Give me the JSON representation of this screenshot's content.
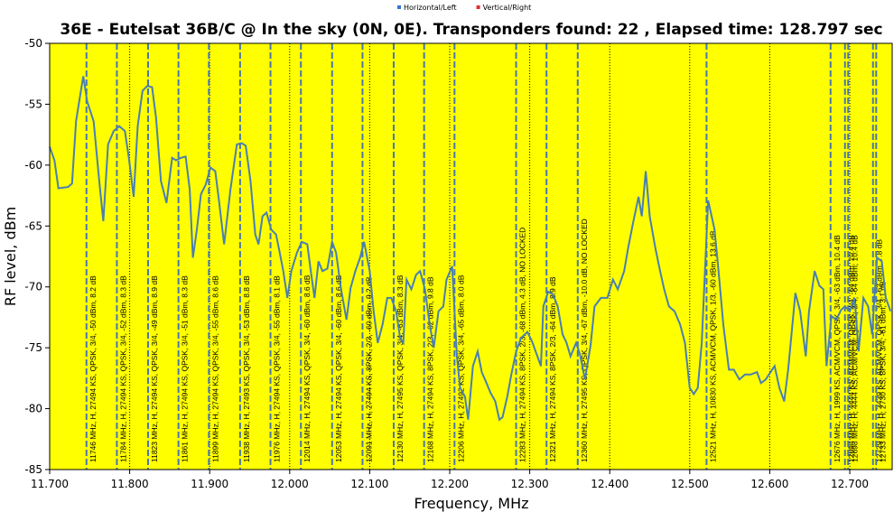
{
  "chart_data": {
    "type": "line",
    "title": "36E - Eutelsat 36B/C @ In the sky (0N, 0E). Transponders found: 22 , Elapsed time: 128.797 sec",
    "x_label": "Frequency, MHz",
    "y_label": "RF level, dBm",
    "xlim": [
      11.7,
      12.753
    ],
    "ylim": [
      -85,
      -50
    ],
    "xticks": [
      {
        "value": 11.7,
        "label": "11.700"
      },
      {
        "value": 11.8,
        "label": "11.800"
      },
      {
        "value": 11.9,
        "label": "11.900"
      },
      {
        "value": 12.0,
        "label": "12.000"
      },
      {
        "value": 12.1,
        "label": "12.100"
      },
      {
        "value": 12.2,
        "label": "12.200"
      },
      {
        "value": 12.3,
        "label": "12.300"
      },
      {
        "value": 12.4,
        "label": "12.400"
      },
      {
        "value": 12.5,
        "label": "12.500"
      },
      {
        "value": 12.6,
        "label": "12.600"
      },
      {
        "value": 12.7,
        "label": "12.700"
      }
    ],
    "yticks": [
      -85,
      -80,
      -75,
      -70,
      -65,
      -60,
      -55,
      -50
    ],
    "grid": "x",
    "background": "#ffff00",
    "series": [
      {
        "name": "Horizontal/Left",
        "color": "#4a7fb0",
        "legend_color": "#3a6fd8",
        "x": [
          11.7,
          11.706,
          11.711,
          11.723,
          11.728,
          11.733,
          11.742,
          11.747,
          11.755,
          11.762,
          11.767,
          11.773,
          11.78,
          11.787,
          11.794,
          11.799,
          11.805,
          11.81,
          11.816,
          11.822,
          11.828,
          11.833,
          11.839,
          11.846,
          11.853,
          11.858,
          11.864,
          11.87,
          11.875,
          11.879,
          11.884,
          11.889,
          11.895,
          11.901,
          11.907,
          11.912,
          11.918,
          11.926,
          11.934,
          11.94,
          11.945,
          11.951,
          11.957,
          11.961,
          11.966,
          11.971,
          11.977,
          11.983,
          11.987,
          11.992,
          11.997,
          12.002,
          12.009,
          12.015,
          12.022,
          12.027,
          12.031,
          12.036,
          12.041,
          12.047,
          12.053,
          12.058,
          12.064,
          12.071,
          12.076,
          12.082,
          12.088,
          12.093,
          12.1,
          12.105,
          12.11,
          12.116,
          12.122,
          12.127,
          12.133,
          12.138,
          12.142,
          12.146,
          12.152,
          12.158,
          12.163,
          12.169,
          12.175,
          12.18,
          12.186,
          12.192,
          12.196,
          12.203,
          12.209,
          12.213,
          12.219,
          12.223,
          12.229,
          12.235,
          12.24,
          12.246,
          12.251,
          12.257,
          12.262,
          12.266,
          12.272,
          12.277,
          12.283,
          12.289,
          12.297,
          12.303,
          12.309,
          12.314,
          12.317,
          12.323,
          12.329,
          12.335,
          12.341,
          12.346,
          12.351,
          12.358,
          12.363,
          12.369,
          12.376,
          12.381,
          12.389,
          12.397,
          12.404,
          12.41,
          12.418,
          12.423,
          12.429,
          12.436,
          12.44,
          12.445,
          12.45,
          12.457,
          12.463,
          12.468,
          12.474,
          12.481,
          12.488,
          12.494,
          12.5,
          12.505,
          12.51,
          12.515,
          12.523,
          12.531,
          12.536,
          12.542,
          12.549,
          12.555,
          12.562,
          12.569,
          12.576,
          12.584,
          12.589,
          12.595,
          12.601,
          12.606,
          12.612,
          12.618,
          12.623,
          12.632,
          12.638,
          12.645,
          12.649,
          12.656,
          12.662,
          12.667,
          12.671,
          12.677,
          12.683,
          12.689,
          12.694,
          12.7,
          12.706,
          12.711,
          12.717,
          12.723,
          12.728,
          12.734,
          12.74,
          12.745,
          12.751
        ],
        "values": [
          -58.5,
          -59.6,
          -61.9,
          -61.8,
          -61.5,
          -56.4,
          -52.7,
          -54.8,
          -56.4,
          -61.3,
          -64.6,
          -58.3,
          -57.2,
          -56.8,
          -57.2,
          -59.4,
          -62.6,
          -56.8,
          -53.9,
          -53.5,
          -53.6,
          -56.1,
          -61.3,
          -63.1,
          -59.4,
          -59.6,
          -59.4,
          -59.3,
          -62.0,
          -67.6,
          -65.3,
          -62.4,
          -61.6,
          -60.2,
          -60.5,
          -63.1,
          -66.5,
          -62.0,
          -58.3,
          -58.2,
          -58.4,
          -61.3,
          -65.7,
          -66.5,
          -64.2,
          -63.9,
          -65.3,
          -65.7,
          -67.0,
          -68.7,
          -70.9,
          -68.7,
          -67.2,
          -66.3,
          -66.5,
          -69.0,
          -70.9,
          -67.9,
          -68.7,
          -68.5,
          -66.3,
          -67.2,
          -70.1,
          -72.7,
          -70.1,
          -68.7,
          -67.6,
          -66.3,
          -68.7,
          -72.0,
          -74.6,
          -73.1,
          -70.9,
          -70.9,
          -72.0,
          -74.2,
          -74.6,
          -69.4,
          -70.2,
          -69.0,
          -68.7,
          -70.2,
          -73.1,
          -75.0,
          -72.0,
          -71.6,
          -69.4,
          -68.3,
          -75.7,
          -78.3,
          -79.0,
          -80.9,
          -76.5,
          -75.3,
          -77.0,
          -77.9,
          -78.7,
          -79.4,
          -80.9,
          -80.7,
          -79.0,
          -77.2,
          -75.3,
          -74.2,
          -73.7,
          -74.5,
          -75.6,
          -76.5,
          -71.6,
          -70.4,
          -70.6,
          -71.6,
          -73.9,
          -74.6,
          -75.7,
          -74.6,
          -75.6,
          -77.6,
          -74.8,
          -71.6,
          -70.9,
          -70.9,
          -69.4,
          -70.2,
          -68.7,
          -66.8,
          -64.8,
          -62.6,
          -64.2,
          -60.5,
          -64.2,
          -66.8,
          -68.7,
          -70.2,
          -71.6,
          -72.0,
          -73.1,
          -74.6,
          -78.3,
          -78.8,
          -78.3,
          -74.6,
          -62.9,
          -65.3,
          -68.7,
          -73.1,
          -76.8,
          -76.8,
          -77.6,
          -77.2,
          -77.2,
          -77.0,
          -77.9,
          -77.6,
          -77.0,
          -76.5,
          -78.3,
          -79.4,
          -76.8,
          -70.5,
          -72.0,
          -75.7,
          -72.0,
          -68.7,
          -69.9,
          -70.2,
          -76.5,
          -72.4,
          -72.7,
          -71.9,
          -71.6,
          -72.0,
          -70.9,
          -75.3,
          -70.9,
          -71.6,
          -73.9,
          -67.6,
          -67.9,
          -70.9,
          -72.0
        ]
      },
      {
        "name": "Vertical/Right",
        "color": "#e03030",
        "legend_color": "#e03030",
        "x": [],
        "values": []
      }
    ],
    "transponder_color": "#4a78a8",
    "transponders": [
      {
        "x": 11.746,
        "label": "11746 MHz, H, 27494 KS, QPSK, 3/4, -50 dBm, 8.2 dB"
      },
      {
        "x": 11.784,
        "label": "11784 MHz, H, 27494 KS, QPSK, 3/4, -52 dBm, 8.3 dB"
      },
      {
        "x": 11.823,
        "label": "11823 MHz, H, 27494 KS, QPSK, 3/4, -49 dBm, 8.9 dB"
      },
      {
        "x": 11.861,
        "label": "11861 MHz, H, 27494 KS, QPSK, 3/4, -51 dBm, 8.3 dB"
      },
      {
        "x": 11.899,
        "label": "11899 MHz, H, 27494 KS, QPSK, 3/4, -55 dBm, 8.6 dB"
      },
      {
        "x": 11.938,
        "label": "11938 MHz, H, 27493 KS, QPSK, 3/4, -53 dBm, 8.8 dB"
      },
      {
        "x": 11.976,
        "label": "11976 MHz, H, 27494 KS, QPSK, 3/4, -55 dBm, 8.1 dB"
      },
      {
        "x": 12.014,
        "label": "12014 MHz, H, 27494 KS, QPSK, 3/4, -60 dBm, 8.6 dB"
      },
      {
        "x": 12.053,
        "label": "12053 MHz, H, 27494 KS, QPSK, 3/4, -60 dBm, 8.6 dB"
      },
      {
        "x": 12.091,
        "label": "12091 MHz, H, 27494 KS, 8PSK, 2/3, -60 dBm, 9.2 dB"
      },
      {
        "x": 12.13,
        "label": "12130 MHz, H, 27495 KS, QPSK, 3/4, -63 dBm, 8.3 dB"
      },
      {
        "x": 12.168,
        "label": "12168 MHz, H, 27494 KS, 8PSK, 2/3, -62 dBm, 9.8 dB"
      },
      {
        "x": 12.206,
        "label": "12206 MHz, H, 27492 KS, QPSK, 3/4, -65 dBm, 8.0 dB"
      },
      {
        "x": 12.283,
        "label": "12283 MHz, H, 27494 KS, 8PSK, 2/3, -68 dBm, 4.3 dB, NO LOCKED"
      },
      {
        "x": 12.321,
        "label": "12321 MHz, H, 27494 KS, 8PSK, 2/3, -64 dBm, 8.9 dB"
      },
      {
        "x": 12.36,
        "label": "12360 MHz, H, 27495 KS, QPSK, 3/4, -67 dBm, -10.0 dB, NO LOCKED"
      },
      {
        "x": 12.521,
        "label": "12521 MHz, H, 10830 KS, ACM/VCM, QPSK, 1/3, -60 dBm, 13.6 dB"
      },
      {
        "x": 12.676,
        "label": "12676 MHz, H, 1999 KS, ACM/VCM, QPSK, 3/4, -63 dBm, 10.4 dB"
      },
      {
        "x": 12.694,
        "label": "12694 MHz, H, 4444 KS, ACM/VCM, QPSK, 3/4, -64 dBm, 10.4 dB"
      },
      {
        "x": 12.698,
        "label": "12698 MHz, H, 4444 KS, ACM/VCM, QPSK, 3/4, -64 dBm, 10.4 dB"
      },
      {
        "x": 12.729,
        "label": "12729 MHz, H, 3439 KS, ACM/VCM, QPSK, 3/4, -62 dBm, 7.8 dB"
      },
      {
        "x": 12.733,
        "label": "12733 MHz, H, 2730 KS, 8PSK, 3/4, -61 dBm, 3.1 dB"
      }
    ]
  }
}
